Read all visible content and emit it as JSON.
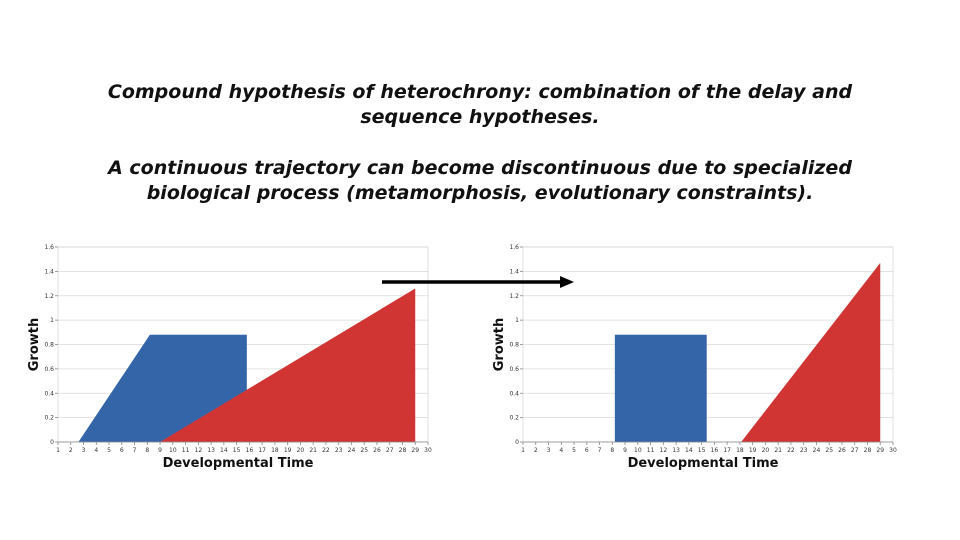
{
  "slide": {
    "heading_1": "Compound hypothesis of heterochrony: combination of the delay and sequence hypotheses.",
    "heading_2": "A continuous trajectory can become discontinuous due to specialized biological process (metamorphosis, evolutionary constraints)."
  },
  "chart_data": [
    {
      "type": "area",
      "xlabel": "Developmental Time",
      "ylabel": "Growth",
      "x_ticks": [
        "1",
        "2",
        "3",
        "4",
        "5",
        "6",
        "7",
        "8",
        "9",
        "10",
        "11",
        "12",
        "13",
        "14",
        "15",
        "16",
        "17",
        "18",
        "19",
        "20",
        "21",
        "22",
        "23",
        "24",
        "25",
        "26",
        "27",
        "28",
        "29",
        "30"
      ],
      "y_ticks": [
        "0",
        "0.2",
        "0.4",
        "0.6",
        "0.8",
        "1",
        "1.2",
        "1.4",
        "1.6"
      ],
      "xlim": [
        1,
        30
      ],
      "ylim": [
        0,
        1.6
      ],
      "grid": "horizontal",
      "series": [
        {
          "color": "#3465a8",
          "x": [
            2.6,
            8.2,
            15.8,
            15.8
          ],
          "y": [
            0,
            0.88,
            0.88,
            0
          ]
        },
        {
          "color": "#d03533",
          "x": [
            9.0,
            29.0,
            29.0
          ],
          "y": [
            0,
            1.26,
            0
          ]
        }
      ]
    },
    {
      "type": "area",
      "xlabel": "Developmental Time",
      "ylabel": "Growth",
      "x_ticks": [
        "1",
        "2",
        "3",
        "4",
        "5",
        "6",
        "7",
        "8",
        "9",
        "10",
        "11",
        "12",
        "13",
        "14",
        "15",
        "16",
        "17",
        "18",
        "19",
        "20",
        "21",
        "22",
        "23",
        "24",
        "25",
        "26",
        "27",
        "28",
        "29",
        "30"
      ],
      "y_ticks": [
        "0",
        "0.2",
        "0.4",
        "0.6",
        "0.8",
        "1",
        "1.2",
        "1.4",
        "1.6"
      ],
      "xlim": [
        1,
        30
      ],
      "ylim": [
        0,
        1.6
      ],
      "grid": "horizontal",
      "series": [
        {
          "color": "#3465a8",
          "x": [
            8.2,
            8.2,
            15.4,
            15.4
          ],
          "y": [
            0,
            0.88,
            0.88,
            0
          ]
        },
        {
          "color": "#d03533",
          "x": [
            18.1,
            29.0,
            29.0
          ],
          "y": [
            0,
            1.47,
            0
          ]
        }
      ]
    }
  ]
}
